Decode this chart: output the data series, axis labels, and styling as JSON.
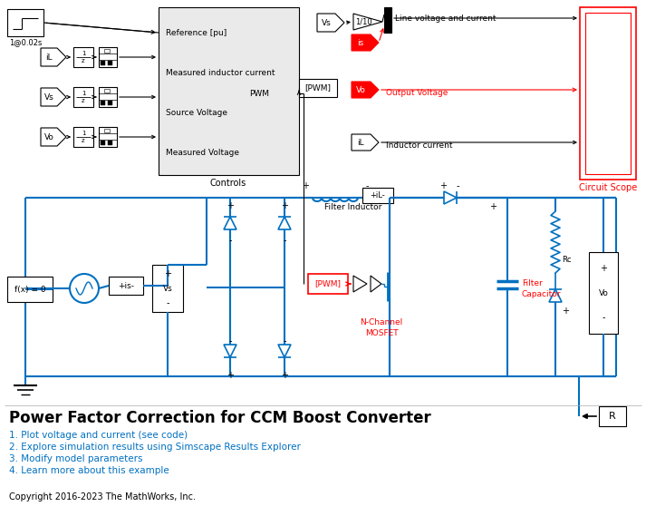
{
  "title": "Power Factor Correction for CCM Boost Converter",
  "background_color": "#ffffff",
  "bullet_points": [
    "1. Plot voltage and current (see code)",
    "2. Explore simulation results using Simscape Results Explorer",
    "3. Modify model parameters",
    "4. Learn more about this example"
  ],
  "copyright": "Copyright 2016-2023 The MathWorks, Inc.",
  "blue": "#0070C0",
  "red": "#FF0000",
  "black": "#000000",
  "gray_ctrl": "#E8E8E8"
}
